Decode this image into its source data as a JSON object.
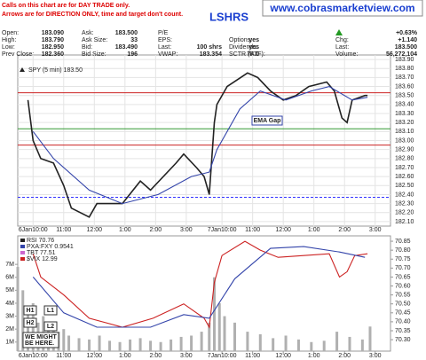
{
  "notice": [
    "Calls on this chart are for DAY TRADE only.",
    "Arrows are for DIRECTION ONLY, time and target don't count."
  ],
  "site": "www.cobrasmarketview.com",
  "title": "LSHRS",
  "quote": {
    "rows": [
      [
        {
          "label": "Open:",
          "value": "183.090"
        },
        {
          "label": "Ask:",
          "value": "183.500"
        },
        {
          "label": "P/E"
        },
        null,
        {
          "value": "+0.63%"
        }
      ],
      [
        {
          "label": "High:",
          "value": "183.790"
        },
        {
          "label": "Ask Size:",
          "value": "33"
        },
        {
          "label": "EPS:"
        },
        {
          "label": "Options:",
          "value": "yes"
        },
        {
          "label": "Chg:",
          "value": "+1.140"
        }
      ],
      [
        {
          "label": "Low:",
          "value": "182.950"
        },
        {
          "label": "Bid:",
          "value": "183.490"
        },
        {
          "label": "Last:",
          "value": "100 shrs"
        },
        {
          "label": "Dividends:",
          "value": "yes"
        },
        {
          "label": "Last:",
          "value": "183.500"
        }
      ],
      [
        {
          "label": "Prev Close:",
          "value": "182.360"
        },
        {
          "label": "Bid Size:",
          "value": "196"
        },
        {
          "label": "VWAP:",
          "value": "183.354"
        },
        {
          "label": "SCTR (ETF):",
          "value": "74.0"
        },
        {
          "label": "Volume:",
          "value": "56,272,104"
        }
      ]
    ]
  },
  "chart_data": [
    {
      "type": "line",
      "legend": "SPY (5 min) 183.50",
      "xlim": [
        0,
        146
      ],
      "xticks": [
        {
          "value": 6,
          "label": "6Jan10:00"
        },
        {
          "value": 18,
          "label": "11:00"
        },
        {
          "value": 30,
          "label": "12:00"
        },
        {
          "value": 42,
          "label": "1:00"
        },
        {
          "value": 54,
          "label": "2:00"
        },
        {
          "value": 66,
          "label": "3:00"
        },
        {
          "value": 80,
          "label": "7Jan10:00"
        },
        {
          "value": 92,
          "label": "11:00"
        },
        {
          "value": 104,
          "label": "12:00"
        },
        {
          "value": 116,
          "label": "1:00"
        },
        {
          "value": 128,
          "label": "2:00"
        },
        {
          "value": 140,
          "label": "3:00"
        }
      ],
      "ylim": [
        182.05,
        183.95
      ],
      "yticks": [
        {
          "value": 183.9,
          "label": "183.90"
        },
        {
          "value": 183.8,
          "label": "183.80"
        },
        {
          "value": 183.7,
          "label": "183.70"
        },
        {
          "value": 183.6,
          "label": "183.60"
        },
        {
          "value": 183.5,
          "label": "183.50"
        },
        {
          "value": 183.4,
          "label": "183.40"
        },
        {
          "value": 183.3,
          "label": "183.30"
        },
        {
          "value": 183.2,
          "label": "183.20"
        },
        {
          "value": 183.1,
          "label": "183.10"
        },
        {
          "value": 183.0,
          "label": "183.00"
        },
        {
          "value": 182.9,
          "label": "182.90"
        },
        {
          "value": 182.8,
          "label": "182.80"
        },
        {
          "value": 182.7,
          "label": "182.70"
        },
        {
          "value": 182.6,
          "label": "182.60"
        },
        {
          "value": 182.5,
          "label": "182.50"
        },
        {
          "value": 182.4,
          "label": "182.40"
        },
        {
          "value": 182.3,
          "label": "182.30"
        },
        {
          "value": 182.2,
          "label": "182.20"
        },
        {
          "value": 182.1,
          "label": "182.10"
        }
      ],
      "grid": true,
      "series": [
        {
          "color": "#222222",
          "x": [
            4,
            6,
            9,
            14,
            18,
            21,
            28,
            31,
            41,
            48,
            52,
            62,
            65,
            70,
            73,
            75,
            77,
            78,
            82,
            90,
            94,
            99,
            104,
            109,
            114,
            121,
            124,
            127,
            129,
            131,
            136,
            137
          ],
          "values": [
            183.45,
            183.0,
            182.8,
            182.75,
            182.5,
            182.25,
            182.15,
            182.3,
            182.3,
            182.55,
            182.45,
            182.75,
            182.85,
            182.7,
            182.6,
            182.4,
            183.2,
            183.4,
            183.6,
            183.75,
            183.7,
            183.55,
            183.45,
            183.5,
            183.6,
            183.65,
            183.55,
            183.25,
            183.2,
            183.45,
            183.5,
            183.5
          ]
        },
        {
          "color": "#3344aa",
          "x": [
            6,
            14,
            28,
            41,
            55,
            68,
            75,
            78,
            87,
            95,
            105,
            115,
            122,
            131,
            137
          ],
          "values": [
            183.1,
            182.8,
            182.45,
            182.3,
            182.4,
            182.6,
            182.65,
            182.9,
            183.35,
            183.55,
            183.45,
            183.55,
            183.6,
            183.45,
            183.48
          ]
        }
      ],
      "levels": [
        {
          "value": 183.53,
          "color": "#cc2222"
        },
        {
          "value": 183.13,
          "color": "#339933"
        },
        {
          "value": 182.95,
          "color": "#cc2222"
        },
        {
          "value": 182.37,
          "color": "#3333ff",
          "dashed": true
        }
      ],
      "annotation": "EMA Gap"
    },
    {
      "type": "line",
      "indicators": [
        {
          "name": "RSI 70.76",
          "color": "#222222"
        },
        {
          "name": "PXA:FXY 0.9541",
          "color": "#3344aa"
        },
        {
          "name": "TBT 77.51",
          "color": "#cc66cc"
        },
        {
          "name": "$VIX 12.99",
          "color": "#cc2222"
        }
      ],
      "xlim": [
        0,
        146
      ],
      "xticks": [
        {
          "value": 6,
          "label": "6Jan10:00"
        },
        {
          "value": 18,
          "label": "11:00"
        },
        {
          "value": 30,
          "label": "12:00"
        },
        {
          "value": 42,
          "label": "1:00"
        },
        {
          "value": 54,
          "label": "2:00"
        },
        {
          "value": 66,
          "label": "3:00"
        },
        {
          "value": 80,
          "label": "7Jan10:00"
        },
        {
          "value": 92,
          "label": "11:00"
        },
        {
          "value": 104,
          "label": "12:00"
        },
        {
          "value": 116,
          "label": "1:00"
        },
        {
          "value": 128,
          "label": "2:00"
        },
        {
          "value": 140,
          "label": "3:00"
        }
      ],
      "ylim": [
        70.236,
        70.88
      ],
      "yticks": [
        70.85,
        {
          "value": 70.8,
          "label": "70.80"
        },
        70.75,
        {
          "value": 70.7,
          "label": "70.70"
        },
        70.65,
        {
          "value": 70.6,
          "label": "70.60"
        },
        70.55,
        {
          "value": 70.5,
          "label": "70.50"
        },
        70.45,
        {
          "value": 70.4,
          "label": "70.40"
        },
        70.35,
        {
          "value": 70.3,
          "label": "70.30"
        }
      ],
      "y2lim": [
        0.3,
        9.2
      ],
      "y2ticks": [
        {
          "value": 7,
          "label": "7M"
        },
        {
          "value": 6,
          "label": "6M"
        },
        {
          "value": 5,
          "label": "5M"
        },
        {
          "value": 4,
          "label": "4M"
        },
        {
          "value": 3,
          "label": "3M"
        },
        {
          "value": 2,
          "label": "2M"
        },
        {
          "value": 1,
          "label": "1M"
        }
      ],
      "series": [
        {
          "type": "bar",
          "axis": "y2",
          "color": "#b0b0b0",
          "x": [
            0,
            2,
            4,
            6,
            8,
            10,
            12,
            14,
            16,
            18,
            20,
            24,
            28,
            32,
            36,
            40,
            44,
            48,
            52,
            56,
            60,
            64,
            68,
            72,
            75,
            77,
            79,
            81,
            85,
            90,
            95,
            100,
            105,
            110,
            115,
            120,
            125,
            130,
            135,
            138
          ],
          "values": [
            6.8,
            5,
            3.5,
            4,
            2.5,
            3,
            2,
            2.2,
            1.8,
            2,
            1.5,
            1.3,
            1.2,
            1.5,
            1.1,
            1,
            1.2,
            1.3,
            1.1,
            1,
            1.2,
            1.4,
            1.5,
            1.8,
            2.5,
            6,
            4,
            3,
            2.5,
            1.8,
            1.6,
            1.3,
            1.5,
            1.2,
            1,
            1.1,
            1.8,
            1.4,
            1.2,
            2.2
          ]
        },
        {
          "color": "#cc2222",
          "x": [
            6,
            9,
            18,
            28,
            41,
            53,
            65,
            73,
            75,
            77,
            80,
            89,
            95,
            102,
            112,
            122,
            126,
            129,
            132,
            137
          ],
          "values": [
            70.78,
            70.65,
            70.55,
            70.42,
            70.37,
            70.42,
            70.5,
            70.42,
            70.37,
            70.62,
            70.77,
            70.85,
            70.8,
            70.76,
            70.77,
            70.78,
            70.65,
            70.68,
            70.77,
            70.78
          ]
        },
        {
          "color": "#3344aa",
          "x": [
            6,
            18,
            31,
            52,
            65,
            75,
            85,
            99,
            112,
            126,
            136
          ],
          "values": [
            70.65,
            70.45,
            70.37,
            70.37,
            70.44,
            70.42,
            70.64,
            70.81,
            70.82,
            70.79,
            70.76
          ]
        }
      ],
      "notes": [
        "H1",
        "L1",
        "H2",
        "L2",
        "WE MIGHT BE HERE."
      ]
    }
  ]
}
